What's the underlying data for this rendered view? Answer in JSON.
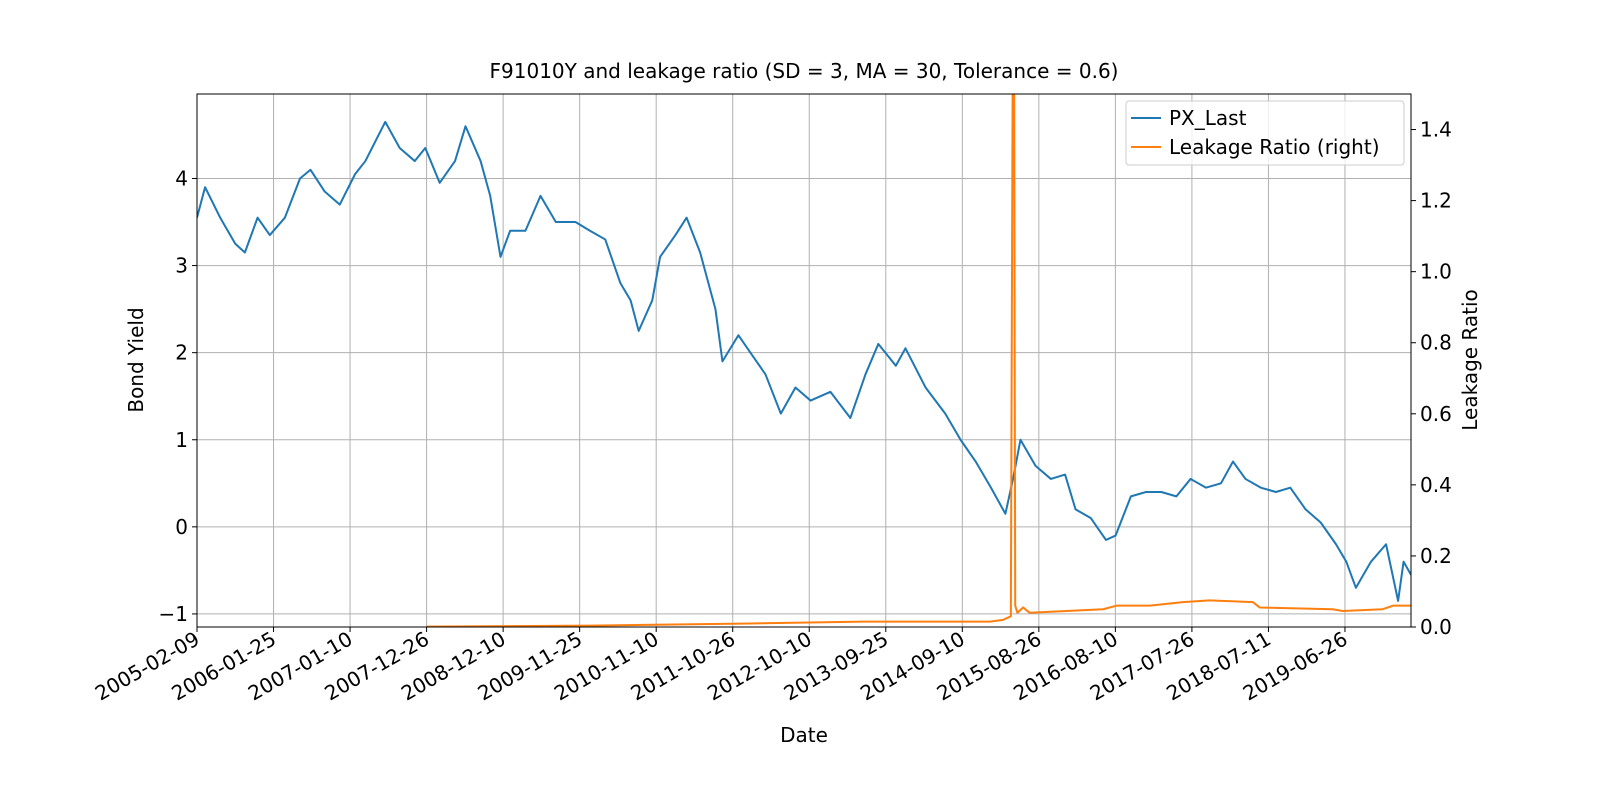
{
  "chart_data": {
    "type": "line",
    "title": "F91010Y and leakage ratio (SD = 3, MA = 30, Tolerance  = 0.6)",
    "x_label": "Date",
    "y_label": "Bond Yield",
    "y2_label": "Leakage Ratio",
    "xlim": [
      "2005-02-09",
      "2020-04-23"
    ],
    "xticks": [
      "2005-02-09",
      "2006-01-25",
      "2007-01-10",
      "2007-12-26",
      "2008-12-10",
      "2009-11-25",
      "2010-11-10",
      "2011-10-26",
      "2012-10-10",
      "2013-09-25",
      "2014-09-10",
      "2015-08-26",
      "2016-08-10",
      "2017-07-26",
      "2018-07-11",
      "2019-06-26"
    ],
    "ylim": [
      -1.15,
      4.97
    ],
    "yticks": [
      {
        "value": -1,
        "label": "−1"
      },
      0,
      1,
      2,
      3,
      4
    ],
    "y2lim": [
      0,
      1.5
    ],
    "y2ticks": [
      {
        "value": 0,
        "label": "0.0"
      },
      {
        "value": 0.2,
        "label": "0.2"
      },
      {
        "value": 0.4,
        "label": "0.4"
      },
      {
        "value": 0.6,
        "label": "0.6"
      },
      {
        "value": 0.8,
        "label": "0.8"
      },
      {
        "value": 1.0,
        "label": "1.0"
      },
      {
        "value": 1.2,
        "label": "1.2"
      },
      {
        "value": 1.4,
        "label": "1.4"
      }
    ],
    "grid": true,
    "legend": "upper right",
    "series": [
      {
        "name": "PX_Last",
        "color": "#1f77b4",
        "x": [
          "2005-02-09",
          "2005-03-18",
          "2005-05-26",
          "2005-08-03",
          "2005-09-16",
          "2005-11-13",
          "2006-01-08",
          "2006-03-18",
          "2006-05-26",
          "2006-07-13",
          "2006-09-16",
          "2006-11-24",
          "2007-02-02",
          "2007-03-21",
          "2007-06-20",
          "2007-08-25",
          "2007-11-02",
          "2007-12-20",
          "2008-02-24",
          "2008-05-04",
          "2008-06-21",
          "2008-08-29",
          "2008-10-12",
          "2008-11-28",
          "2009-01-11",
          "2009-03-22",
          "2009-05-30",
          "2009-08-08",
          "2009-11-06",
          "2010-01-11",
          "2010-03-22",
          "2010-05-30",
          "2010-07-16",
          "2010-08-22",
          "2010-10-23",
          "2010-11-28",
          "2011-02-06",
          "2011-03-29",
          "2011-05-30",
          "2011-08-08",
          "2011-09-09",
          "2011-11-21",
          "2012-01-15",
          "2012-03-24",
          "2012-06-02",
          "2012-08-08",
          "2012-10-16",
          "2013-01-15",
          "2013-04-16",
          "2013-06-24",
          "2013-08-22",
          "2013-11-10",
          "2013-12-24",
          "2014-03-26",
          "2014-06-24",
          "2014-09-02",
          "2014-11-10",
          "2015-01-19",
          "2015-03-26",
          "2015-04-30",
          "2015-06-03",
          "2015-08-11",
          "2015-10-20",
          "2015-12-24",
          "2016-02-10",
          "2016-04-20",
          "2016-06-28",
          "2016-08-11",
          "2016-10-20",
          "2016-12-28",
          "2017-03-08",
          "2017-05-16",
          "2017-07-20",
          "2017-09-28",
          "2017-12-06",
          "2018-01-30",
          "2018-03-28",
          "2018-06-06",
          "2018-08-14",
          "2018-10-19",
          "2018-12-28",
          "2019-03-07",
          "2019-05-16",
          "2019-07-02",
          "2019-08-15",
          "2019-10-23",
          "2019-12-31",
          "2020-02-24",
          "2020-03-20",
          "2020-04-23"
        ],
        "values": [
          3.55,
          3.9,
          3.55,
          3.25,
          3.15,
          3.55,
          3.35,
          3.55,
          4.0,
          4.1,
          3.85,
          3.7,
          4.05,
          4.2,
          4.65,
          4.35,
          4.2,
          4.35,
          3.95,
          4.2,
          4.6,
          4.2,
          3.8,
          3.1,
          3.4,
          3.4,
          3.8,
          3.5,
          3.5,
          3.4,
          3.3,
          2.8,
          2.6,
          2.25,
          2.6,
          3.1,
          3.35,
          3.55,
          3.15,
          2.5,
          1.9,
          2.2,
          2.0,
          1.75,
          1.3,
          1.6,
          1.45,
          1.55,
          1.25,
          1.75,
          2.1,
          1.85,
          2.05,
          1.6,
          1.3,
          1.0,
          0.75,
          0.45,
          0.15,
          0.55,
          1.0,
          0.7,
          0.55,
          0.6,
          0.2,
          0.1,
          -0.15,
          -0.1,
          0.35,
          0.4,
          0.4,
          0.35,
          0.55,
          0.45,
          0.5,
          0.75,
          0.55,
          0.45,
          0.4,
          0.45,
          0.2,
          0.05,
          -0.2,
          -0.4,
          -0.7,
          -0.4,
          -0.2,
          -0.85,
          -0.4,
          -0.55
        ]
      },
      {
        "name": "Leakage Ratio (right)",
        "color": "#ff7f0e",
        "axis": "y2",
        "x": [
          "2007-12-26",
          "2010-01-15",
          "2012-01-15",
          "2013-06-15",
          "2015-01-15",
          "2015-03-15",
          "2015-04-20",
          "2015-04-28",
          "2015-05-05",
          "2015-05-10",
          "2015-05-20",
          "2015-06-15",
          "2015-07-15",
          "2016-06-15",
          "2016-08-15",
          "2017-01-15",
          "2017-06-15",
          "2017-10-15",
          "2018-05-01",
          "2018-06-01",
          "2019-05-01",
          "2019-06-15",
          "2019-12-15",
          "2020-02-01",
          "2020-04-23"
        ],
        "values": [
          0.001,
          0.004,
          0.01,
          0.015,
          0.015,
          0.02,
          0.03,
          1.5,
          1.5,
          0.06,
          0.04,
          0.055,
          0.04,
          0.05,
          0.06,
          0.06,
          0.07,
          0.075,
          0.07,
          0.055,
          0.05,
          0.045,
          0.05,
          0.06,
          0.06
        ]
      }
    ]
  }
}
